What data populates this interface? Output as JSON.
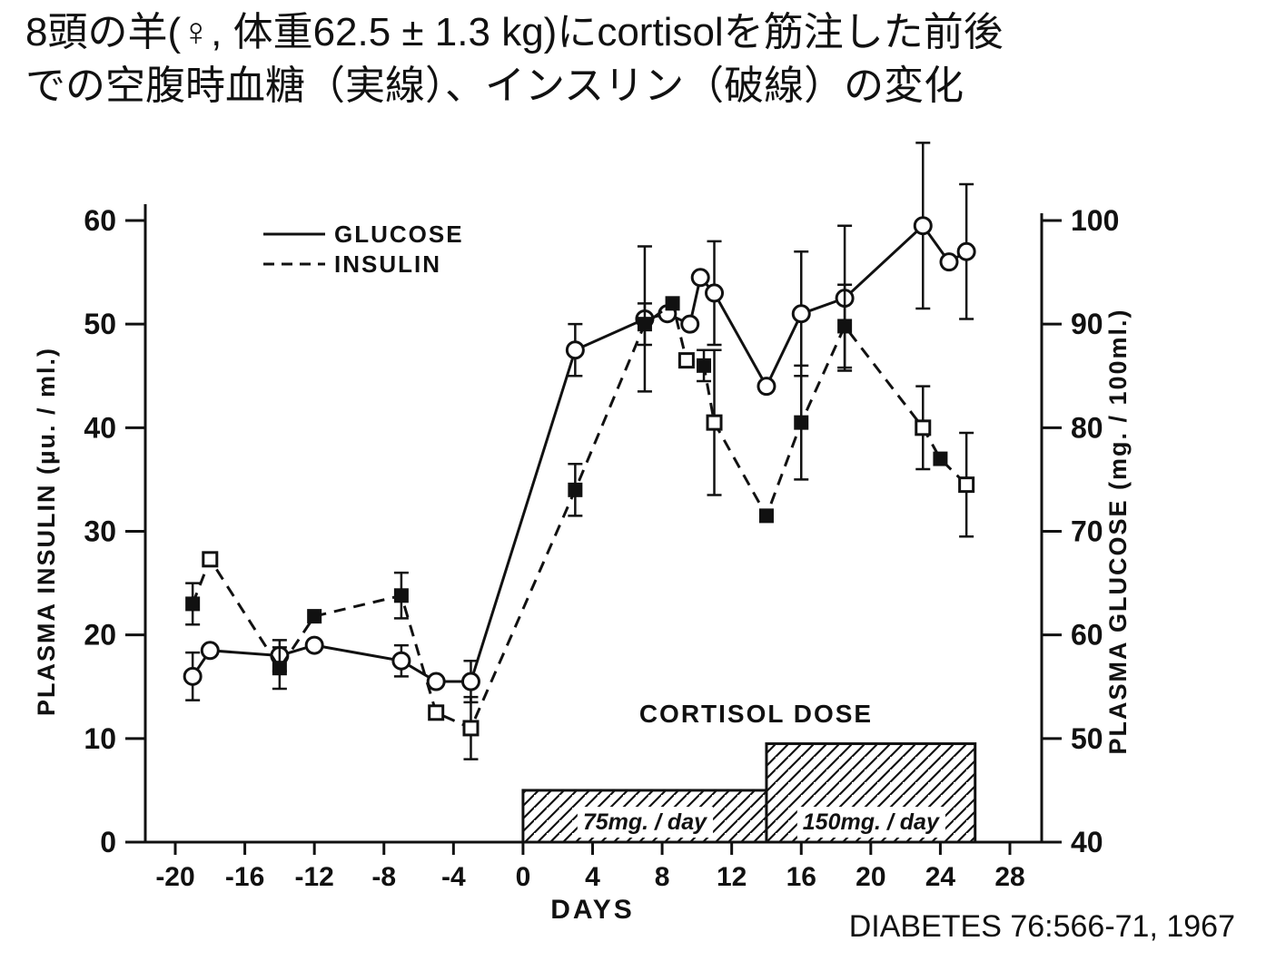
{
  "title_line1": "8頭の羊(♀, 体重62.5 ± 1.3 kg)にcortisolを筋注した前後",
  "title_line2": "での空腹時血糖（実線）、インスリン（破線）の変化",
  "citation": "DIABETES 76:566-71, 1967",
  "chart_data": {
    "type": "line",
    "xlabel": "DAYS",
    "ylabel_left": "PLASMA INSULIN (µu. / ml.)",
    "ylabel_right": "PLASMA GLUCOSE (mg. / 100ml.)",
    "xlim": [
      -22,
      30
    ],
    "x_ticks": [
      -20,
      -16,
      -12,
      -8,
      -4,
      0,
      4,
      8,
      12,
      16,
      20,
      24,
      28
    ],
    "ylim_left": [
      0,
      63
    ],
    "y_ticks_left": [
      0,
      10,
      20,
      30,
      40,
      50,
      60
    ],
    "ylim_right": [
      40,
      103
    ],
    "y_ticks_right": [
      40,
      50,
      60,
      70,
      80,
      90,
      100
    ],
    "legend": [
      {
        "label": "GLUCOSE",
        "style": "solid"
      },
      {
        "label": "INSULIN",
        "style": "dashed"
      }
    ],
    "series": [
      {
        "name": "GLUCOSE",
        "axis": "right",
        "line": "solid",
        "points": [
          {
            "x": -19,
            "y": 56,
            "err": 2.3,
            "marker": "circle-open"
          },
          {
            "x": -18,
            "y": 58.5,
            "err": 0,
            "marker": "circle-open"
          },
          {
            "x": -14,
            "y": 58,
            "err": 1.5,
            "marker": "circle-open"
          },
          {
            "x": -12,
            "y": 59,
            "err": 0,
            "marker": "circle-open"
          },
          {
            "x": -7,
            "y": 57.5,
            "err": 1.5,
            "marker": "circle-open"
          },
          {
            "x": -5,
            "y": 55.5,
            "err": 0,
            "marker": "circle-open"
          },
          {
            "x": -3,
            "y": 55.5,
            "err": 2,
            "marker": "circle-open"
          },
          {
            "x": 3,
            "y": 87.5,
            "err": 2.5,
            "marker": "circle-open"
          },
          {
            "x": 7,
            "y": 90.5,
            "err": 7,
            "marker": "circle-open"
          },
          {
            "x": 8.3,
            "y": 91,
            "err": 0,
            "marker": "circle-open"
          },
          {
            "x": 9.6,
            "y": 90,
            "err": 0,
            "marker": "circle-open"
          },
          {
            "x": 10.2,
            "y": 94.5,
            "err": 0,
            "marker": "circle-open"
          },
          {
            "x": 11,
            "y": 93,
            "err": 5,
            "marker": "circle-open"
          },
          {
            "x": 14,
            "y": 84,
            "err": 0,
            "marker": "circle-open"
          },
          {
            "x": 16,
            "y": 91,
            "err": 6,
            "marker": "circle-open"
          },
          {
            "x": 18.5,
            "y": 92.5,
            "err": 7,
            "marker": "circle-open"
          },
          {
            "x": 23,
            "y": 99.5,
            "err": 8,
            "marker": "circle-open"
          },
          {
            "x": 24.5,
            "y": 96,
            "err": 0,
            "marker": "circle-open"
          },
          {
            "x": 25.5,
            "y": 97,
            "err": 6.5,
            "marker": "circle-open"
          }
        ]
      },
      {
        "name": "INSULIN",
        "axis": "left",
        "line": "dashed",
        "points": [
          {
            "x": -19,
            "y": 23,
            "err": 2,
            "marker": "square-filled"
          },
          {
            "x": -18,
            "y": 27.3,
            "err": 0,
            "marker": "square-open"
          },
          {
            "x": -14,
            "y": 16.8,
            "err": 2,
            "marker": "square-filled"
          },
          {
            "x": -12,
            "y": 21.8,
            "err": 0,
            "marker": "square-filled"
          },
          {
            "x": -7,
            "y": 23.8,
            "err": 2.2,
            "marker": "square-filled"
          },
          {
            "x": -5,
            "y": 12.5,
            "err": 0,
            "marker": "square-open"
          },
          {
            "x": -3,
            "y": 11,
            "err": 3,
            "marker": "square-open"
          },
          {
            "x": 3,
            "y": 34,
            "err": 2.5,
            "marker": "square-filled"
          },
          {
            "x": 7,
            "y": 50,
            "err": 2,
            "marker": "square-filled"
          },
          {
            "x": 8.6,
            "y": 52,
            "err": 0,
            "marker": "square-filled"
          },
          {
            "x": 9.4,
            "y": 46.5,
            "err": 0,
            "marker": "square-open"
          },
          {
            "x": 10.4,
            "y": 46,
            "err": 1.5,
            "marker": "square-filled"
          },
          {
            "x": 11,
            "y": 40.5,
            "err": 7,
            "marker": "square-open"
          },
          {
            "x": 14,
            "y": 31.5,
            "err": 0,
            "marker": "square-filled"
          },
          {
            "x": 16,
            "y": 40.5,
            "err": 5.5,
            "marker": "square-filled"
          },
          {
            "x": 18.5,
            "y": 49.8,
            "err": 4,
            "marker": "square-filled"
          },
          {
            "x": 23,
            "y": 40,
            "err": 4,
            "marker": "square-open"
          },
          {
            "x": 24,
            "y": 37,
            "err": 0,
            "marker": "square-filled"
          },
          {
            "x": 25.5,
            "y": 34.5,
            "err": 5,
            "marker": "square-open"
          }
        ]
      }
    ],
    "dose_bars": {
      "label": "CORTISOL DOSE",
      "bars": [
        {
          "x0": 0,
          "x1": 14,
          "height": 5,
          "label": "75mg. / day"
        },
        {
          "x0": 14,
          "x1": 26,
          "height": 9.5,
          "label": "150mg. / day"
        }
      ]
    }
  }
}
